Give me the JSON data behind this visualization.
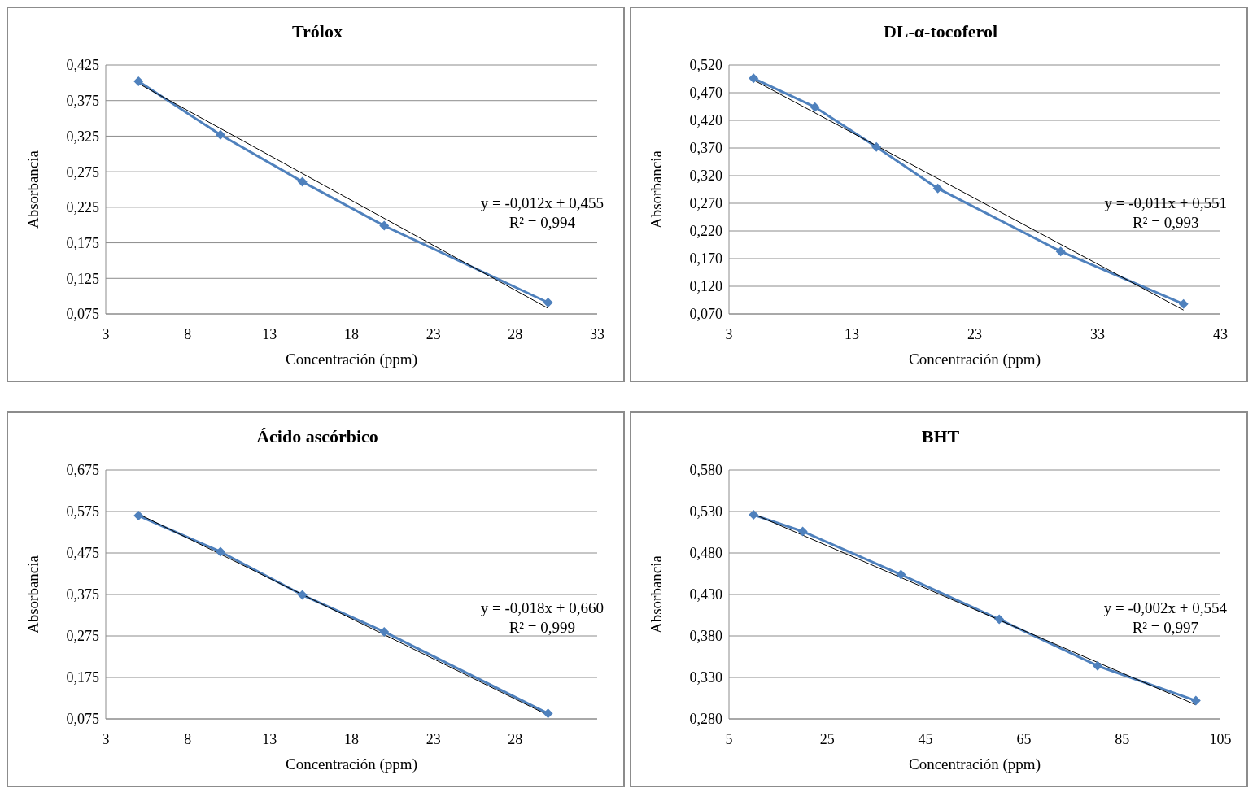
{
  "chart_data": [
    {
      "type": "line",
      "title": "Trólox",
      "xlabel": "Concentración (ppm)",
      "ylabel": "Absorbancia",
      "xlim": [
        3,
        33
      ],
      "xticks": [
        3,
        8,
        13,
        18,
        23,
        28,
        33
      ],
      "ylim": [
        0.075,
        0.425
      ],
      "yticks": [
        {
          "value": 0.075,
          "label": "0,075"
        },
        {
          "value": 0.125,
          "label": "0,125"
        },
        {
          "value": 0.175,
          "label": "0,175"
        },
        {
          "value": 0.225,
          "label": "0,225"
        },
        {
          "value": 0.275,
          "label": "0,275"
        },
        {
          "value": 0.325,
          "label": "0,325"
        },
        {
          "value": 0.375,
          "label": "0,375"
        },
        {
          "value": 0.425,
          "label": "0,425"
        }
      ],
      "grid": "y",
      "annotations": [
        "y = -0,012x + 0,455",
        "R² = 0,994"
      ],
      "series": [
        {
          "type": "line",
          "color": "#4f81bd",
          "marker": "diamond",
          "x": [
            5,
            10,
            15,
            20,
            30
          ],
          "values": [
            0.402,
            0.327,
            0.261,
            0.199,
            0.091
          ]
        },
        {
          "type": "line",
          "color": "#000000",
          "marker": "none",
          "x": [
            5,
            30
          ],
          "values": [
            0.399,
            0.083
          ]
        }
      ]
    },
    {
      "type": "line",
      "title": "DL-α-tocoferol",
      "xlabel": "Concentración (ppm)",
      "ylabel": "Absorbancia",
      "xlim": [
        3,
        43
      ],
      "xticks": [
        3,
        13,
        23,
        33,
        43
      ],
      "ylim": [
        0.07,
        0.52
      ],
      "yticks": [
        {
          "value": 0.07,
          "label": "0,070"
        },
        {
          "value": 0.12,
          "label": "0,120"
        },
        {
          "value": 0.17,
          "label": "0,170"
        },
        {
          "value": 0.22,
          "label": "0,220"
        },
        {
          "value": 0.27,
          "label": "0,270"
        },
        {
          "value": 0.32,
          "label": "0,320"
        },
        {
          "value": 0.37,
          "label": "0,370"
        },
        {
          "value": 0.42,
          "label": "0,420"
        },
        {
          "value": 0.47,
          "label": "0,470"
        },
        {
          "value": 0.52,
          "label": "0,520"
        }
      ],
      "grid": "y",
      "annotations": [
        "y = -0,011x + 0,551",
        "R² = 0,993"
      ],
      "series": [
        {
          "type": "line",
          "color": "#4f81bd",
          "marker": "diamond",
          "x": [
            5,
            10,
            15,
            20,
            30,
            40
          ],
          "values": [
            0.496,
            0.444,
            0.372,
            0.297,
            0.183,
            0.088
          ]
        },
        {
          "type": "line",
          "color": "#000000",
          "marker": "none",
          "x": [
            5,
            40
          ],
          "values": [
            0.493,
            0.077
          ]
        }
      ]
    },
    {
      "type": "line",
      "title": "Ácido ascórbico",
      "xlabel": "Concentración (ppm)",
      "ylabel": "Absorbancia",
      "xlim": [
        3,
        33
      ],
      "xticks": [
        3,
        8,
        13,
        18,
        23,
        28
      ],
      "ylim": [
        0.075,
        0.675
      ],
      "yticks": [
        {
          "value": 0.075,
          "label": "0,075"
        },
        {
          "value": 0.175,
          "label": "0,175"
        },
        {
          "value": 0.275,
          "label": "0,275"
        },
        {
          "value": 0.375,
          "label": "0,375"
        },
        {
          "value": 0.475,
          "label": "0,475"
        },
        {
          "value": 0.575,
          "label": "0,575"
        },
        {
          "value": 0.675,
          "label": "0,675"
        }
      ],
      "grid": "y",
      "annotations": [
        "y = -0,018x + 0,660",
        "R² = 0,999"
      ],
      "series": [
        {
          "type": "line",
          "color": "#4f81bd",
          "marker": "diamond",
          "x": [
            5,
            10,
            15,
            20,
            30
          ],
          "values": [
            0.565,
            0.478,
            0.374,
            0.285,
            0.088
          ]
        },
        {
          "type": "line",
          "color": "#000000",
          "marker": "none",
          "x": [
            5,
            30
          ],
          "values": [
            0.569,
            0.084
          ]
        }
      ]
    },
    {
      "type": "line",
      "title": "BHT",
      "xlabel": "Concentración (ppm)",
      "ylabel": "Absorbancia",
      "xlim": [
        5,
        105
      ],
      "xticks": [
        5,
        25,
        45,
        65,
        85,
        105
      ],
      "ylim": [
        0.28,
        0.58
      ],
      "yticks": [
        {
          "value": 0.28,
          "label": "0,280"
        },
        {
          "value": 0.33,
          "label": "0,330"
        },
        {
          "value": 0.38,
          "label": "0,380"
        },
        {
          "value": 0.43,
          "label": "0,430"
        },
        {
          "value": 0.48,
          "label": "0,480"
        },
        {
          "value": 0.53,
          "label": "0,530"
        },
        {
          "value": 0.58,
          "label": "0,580"
        }
      ],
      "grid": "y",
      "annotations": [
        "y = -0,002x + 0,554",
        "R² = 0,997"
      ],
      "series": [
        {
          "type": "line",
          "color": "#4f81bd",
          "marker": "diamond",
          "x": [
            10,
            20,
            40,
            60,
            80,
            100
          ],
          "values": [
            0.526,
            0.506,
            0.454,
            0.4,
            0.344,
            0.302
          ]
        },
        {
          "type": "line",
          "color": "#000000",
          "marker": "none",
          "x": [
            10,
            100
          ],
          "values": [
            0.527,
            0.297
          ]
        }
      ]
    }
  ]
}
